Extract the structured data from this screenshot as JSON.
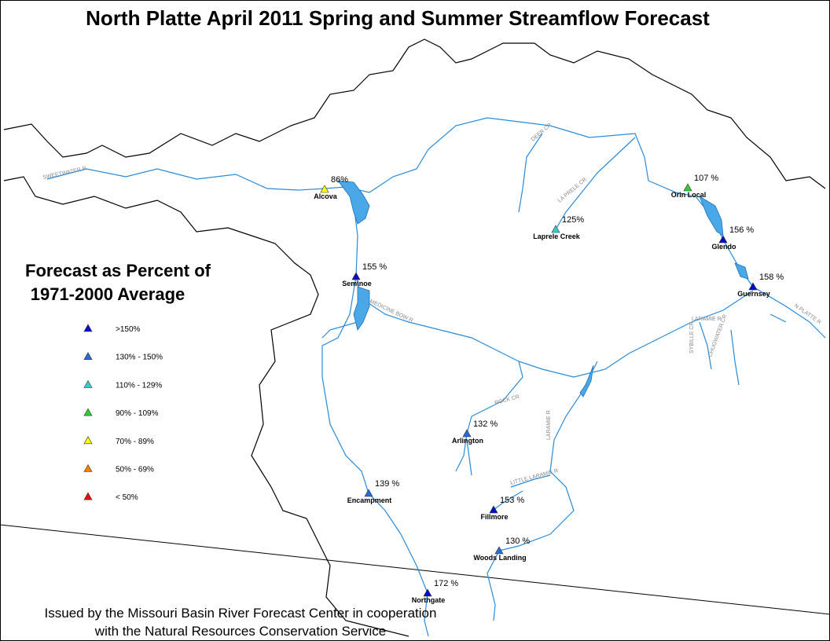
{
  "header": {
    "title": "North Platte April 2011 Spring and Summer Streamflow Forecast"
  },
  "legend": {
    "title": [
      "Forecast as Percent of",
      "1971-2000 Average"
    ],
    "items": [
      {
        "label": ">150%",
        "color": "#0a0acc"
      },
      {
        "label": "130% - 150%",
        "color": "#2a6ad8"
      },
      {
        "label": "110% - 129%",
        "color": "#33cccc"
      },
      {
        "label": "90% - 109%",
        "color": "#33cc33"
      },
      {
        "label": "70% - 89%",
        "color": "#ffff00"
      },
      {
        "label": "50% - 69%",
        "color": "#ff8000"
      },
      {
        "label": "< 50%",
        "color": "#ff0000"
      }
    ]
  },
  "stations": [
    {
      "name": "Alcova",
      "forecast": "86%",
      "color": "#ffff00"
    },
    {
      "name": "Orin Local",
      "forecast": "107 %",
      "color": "#33cc33"
    },
    {
      "name": "Laprele Creek",
      "forecast": "125%",
      "color": "#33cccc"
    },
    {
      "name": "Glendo",
      "forecast": "156 %",
      "color": "#0a0acc"
    },
    {
      "name": "Seminoe",
      "forecast": "155 %",
      "color": "#0a0acc"
    },
    {
      "name": "Guernsey",
      "forecast": "158 %",
      "color": "#0a0acc"
    },
    {
      "name": "Arlington",
      "forecast": "132 %",
      "color": "#2a6ad8"
    },
    {
      "name": "Encampment",
      "forecast": "139 %",
      "color": "#2a6ad8"
    },
    {
      "name": "Fillmore",
      "forecast": "153 %",
      "color": "#0a0acc"
    },
    {
      "name": "Woods Landing",
      "forecast": "130 %",
      "color": "#2a6ad8"
    },
    {
      "name": "Northgate",
      "forecast": "172 %",
      "color": "#0a0acc"
    }
  ],
  "rivers": [
    "SWEETWATER R",
    "DEER CR",
    "LA PRELE CR",
    "MEDICINE BOW R",
    "ROCK CR",
    "LARAMIE R",
    "LITTLE LARAMIE R",
    "LARAMIE R",
    "SYBILLE CR",
    "CHUGWATER CR",
    "N PLATTE R"
  ],
  "footer": [
    "Issued by the Missouri Basin River Forecast Center in cooperation",
    "with the Natural Resources Conservation Service"
  ]
}
